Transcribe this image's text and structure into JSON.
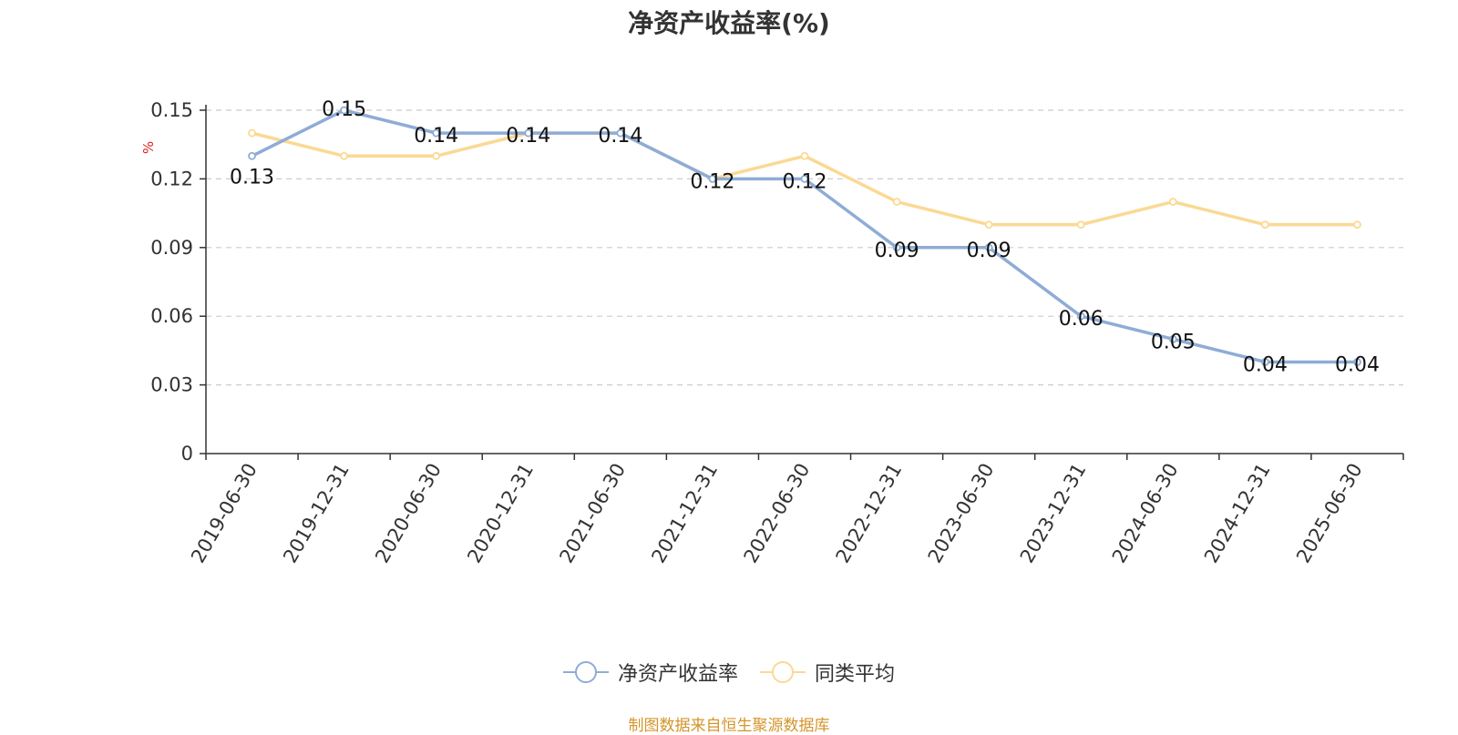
{
  "chart_data": {
    "type": "line",
    "title": "净资产收益率(%)",
    "ylabel": "%",
    "ylim": [
      0,
      0.15
    ],
    "yticks": [
      "0",
      "0.03",
      "0.06",
      "0.09",
      "0.12",
      "0.15"
    ],
    "categories": [
      "2019-06-30",
      "2019-12-31",
      "2020-06-30",
      "2020-12-31",
      "2021-06-30",
      "2021-12-31",
      "2022-06-30",
      "2022-12-31",
      "2023-06-30",
      "2023-12-31",
      "2024-06-30",
      "2024-12-31",
      "2025-06-30"
    ],
    "grid": true,
    "legend_position": "bottom",
    "series": [
      {
        "name": "净资产收益率",
        "color": "#8eacd6",
        "values": [
          0.13,
          0.15,
          0.14,
          0.14,
          0.14,
          0.12,
          0.12,
          0.09,
          0.09,
          0.06,
          0.05,
          0.04,
          0.04
        ],
        "labels": [
          "0.13",
          "0.15",
          "0.14",
          "0.14",
          "0.14",
          "0.12",
          "0.12",
          "0.09",
          "0.09",
          "0.06",
          "0.05",
          "0.04",
          "0.04"
        ]
      },
      {
        "name": "同类平均",
        "color": "#fbd994",
        "values": [
          0.14,
          0.13,
          0.13,
          0.14,
          0.14,
          0.12,
          0.13,
          0.11,
          0.1,
          0.1,
          0.11,
          0.1,
          0.1
        ]
      }
    ]
  },
  "source_note": "制图数据来自恒生聚源数据库"
}
